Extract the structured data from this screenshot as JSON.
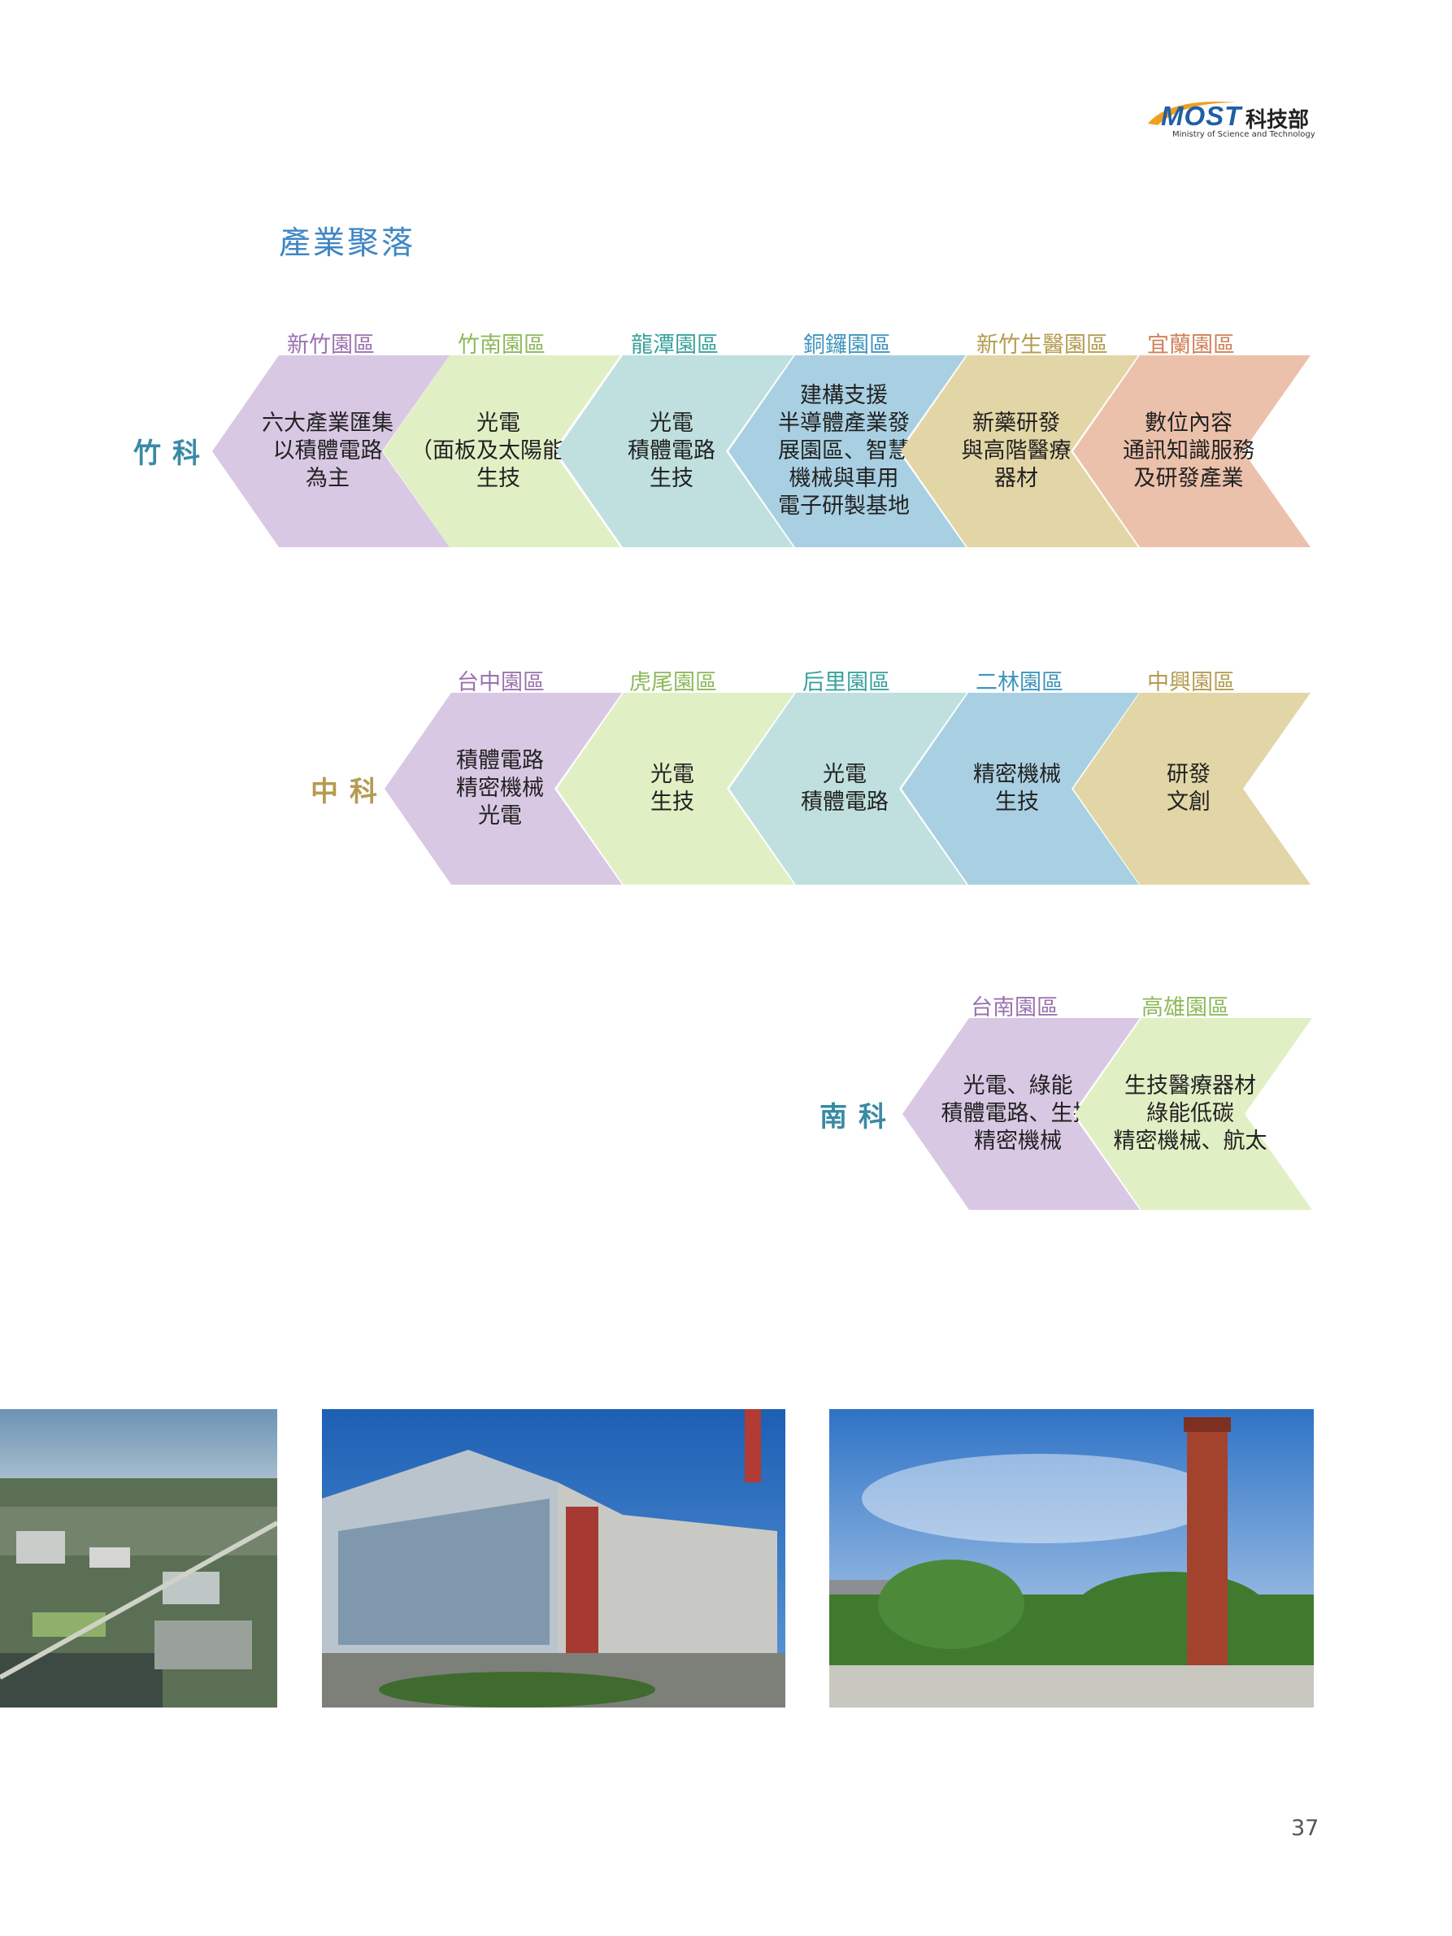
{
  "logo": {
    "brand": "MOST",
    "name_zh": "科技部",
    "name_en": "Ministry of Science and Technology"
  },
  "page_title": "產業聚落",
  "rows": [
    {
      "label": "竹科",
      "color": "#3a8aa6",
      "parks": [
        {
          "name": "新竹園區",
          "name_color": "#9b72b0",
          "fill": "#d9c8e4",
          "text": "六大產業匯集\n以積體電路\n為主"
        },
        {
          "name": "竹南園區",
          "name_color": "#8db95b",
          "fill": "#e1efc5",
          "text": "光電\n（面板及太陽能）\n生技"
        },
        {
          "name": "龍潭園區",
          "name_color": "#3aa29b",
          "fill": "#bfe0de",
          "text": "光電\n積體電路\n生技"
        },
        {
          "name": "銅鑼園區",
          "name_color": "#3f95bd",
          "fill": "#a9d0e2",
          "text": "建構支援\n半導體產業發\n展園區、智慧\n機械與車用\n電子研製基地"
        },
        {
          "name": "新竹生醫園區",
          "name_color": "#b59b4f",
          "fill": "#e2d6a6",
          "text": "新藥研發\n與高階醫療\n器材"
        },
        {
          "name": "宜蘭園區",
          "name_color": "#d0815a",
          "fill": "#ecc1ab",
          "text": "數位內容\n通訊知識服務\n及研發產業"
        }
      ]
    },
    {
      "label": "中科",
      "color": "#b59b4f",
      "parks": [
        {
          "name": "台中園區",
          "name_color": "#9b72b0",
          "fill": "#d9c8e4",
          "text": "積體電路\n精密機械\n光電"
        },
        {
          "name": "虎尾園區",
          "name_color": "#8db95b",
          "fill": "#e1efc5",
          "text": "光電\n生技"
        },
        {
          "name": "后里園區",
          "name_color": "#3aa29b",
          "fill": "#bfe0de",
          "text": "光電\n積體電路"
        },
        {
          "name": "二林園區",
          "name_color": "#3f95bd",
          "fill": "#a9d0e2",
          "text": "精密機械\n生技"
        },
        {
          "name": "中興園區",
          "name_color": "#b59b4f",
          "fill": "#e2d6a6",
          "text": "研發\n文創"
        }
      ]
    },
    {
      "label": "南科",
      "color": "#3a8aa6",
      "parks": [
        {
          "name": "台南園區",
          "name_color": "#9b72b0",
          "fill": "#d9c8e4",
          "text": "光電、綠能\n積體電路、生技\n精密機械"
        },
        {
          "name": "高雄園區",
          "name_color": "#8db95b",
          "fill": "#e1efc5",
          "text": "生技醫療器材\n綠能低碳\n精密機械、航太"
        }
      ]
    }
  ],
  "page_number": "37"
}
